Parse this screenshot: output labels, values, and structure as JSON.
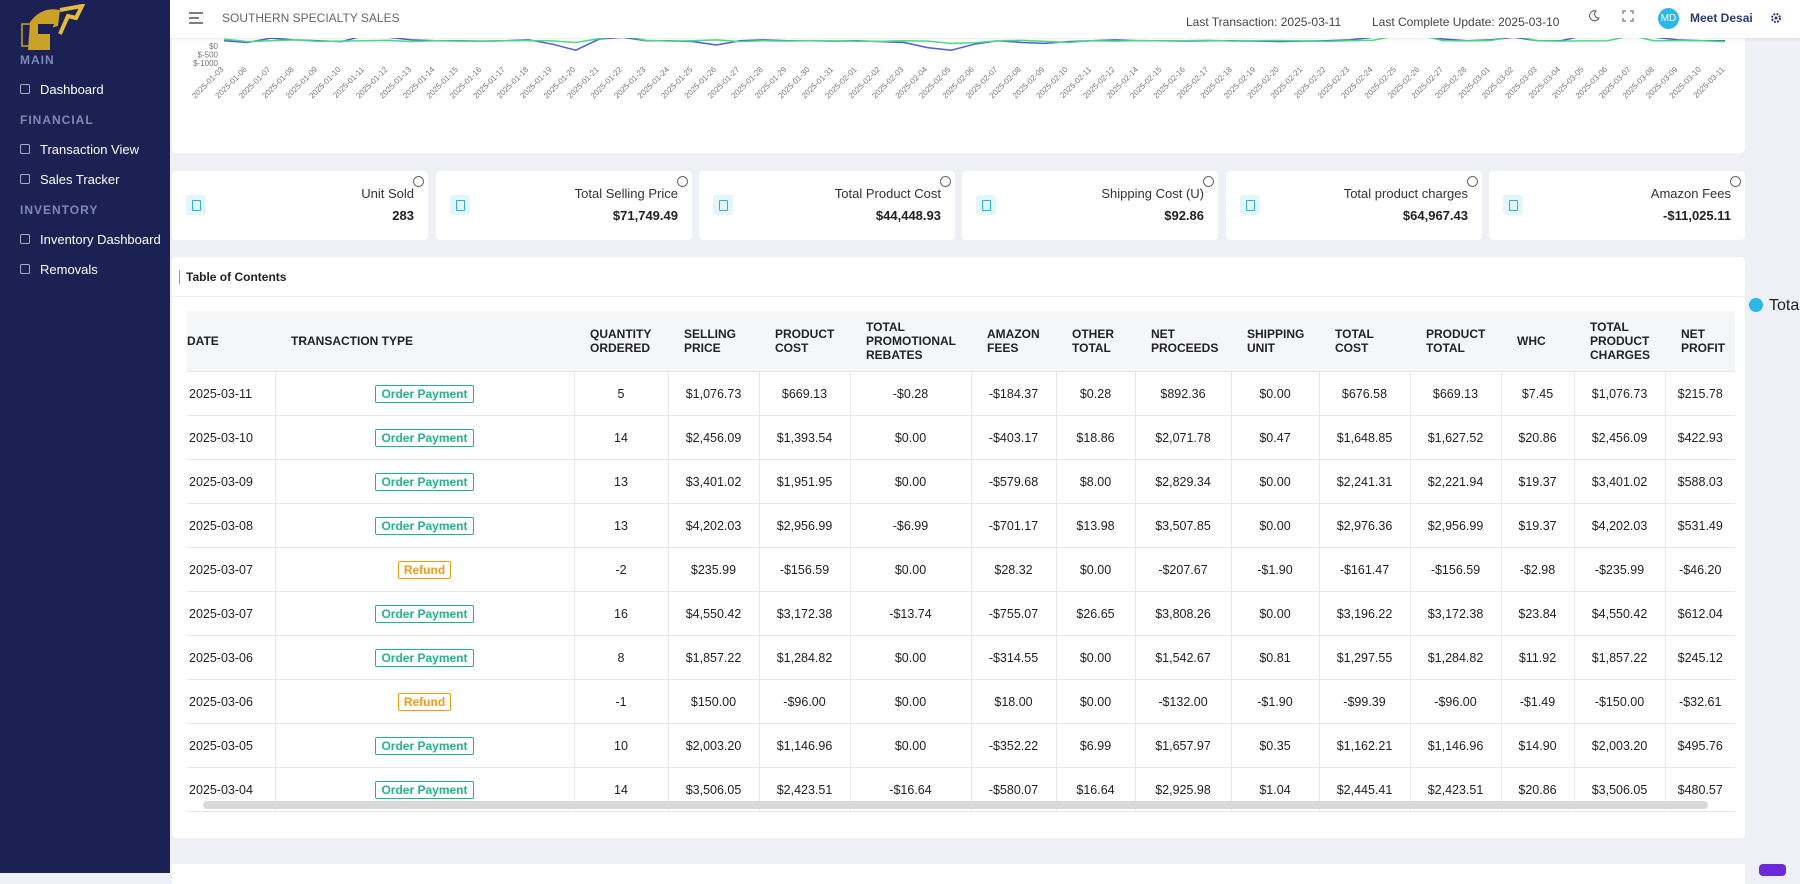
{
  "sidebar": {
    "sections": [
      {
        "heading": "MAIN",
        "items": [
          "Dashboard"
        ]
      },
      {
        "heading": "FINANCIAL",
        "items": [
          "Transaction View",
          "Sales Tracker"
        ]
      },
      {
        "heading": "INVENTORY",
        "items": [
          "Inventory Dashboard",
          "Removals"
        ]
      }
    ]
  },
  "header": {
    "title": "SOUTHERN SPECIALTY SALES",
    "last_transaction": "Last Transaction: 2025-03-11",
    "last_update": "Last Complete Update: 2025-03-10",
    "avatar": "MD",
    "user": "Meet Desai"
  },
  "chart_data": {
    "type": "line",
    "x": [
      "2025-01-03",
      "2025-01-06",
      "2025-01-07",
      "2025-01-08",
      "2025-01-09",
      "2025-01-10",
      "2025-01-11",
      "2025-01-12",
      "2025-01-13",
      "2025-01-14",
      "2025-01-15",
      "2025-01-16",
      "2025-01-17",
      "2025-01-18",
      "2025-01-19",
      "2025-01-20",
      "2025-01-21",
      "2025-01-22",
      "2025-01-23",
      "2025-01-24",
      "2025-01-25",
      "2025-01-26",
      "2025-01-27",
      "2025-01-28",
      "2025-01-29",
      "2025-01-30",
      "2025-01-31",
      "2025-02-01",
      "2025-02-02",
      "2025-02-03",
      "2025-02-04",
      "2025-02-05",
      "2025-02-06",
      "2025-02-07",
      "2025-02-08",
      "2025-02-09",
      "2025-02-10",
      "2025-02-11",
      "2025-02-12",
      "2025-02-14",
      "2025-02-15",
      "2025-02-16",
      "2025-02-17",
      "2025-02-18",
      "2025-02-19",
      "2025-02-20",
      "2025-02-21",
      "2025-02-22",
      "2025-02-23",
      "2025-02-24",
      "2025-02-25",
      "2025-02-26",
      "2025-02-27",
      "2025-02-28",
      "2025-03-01",
      "2025-03-02",
      "2025-03-03",
      "2025-03-04",
      "2025-03-05",
      "2025-03-06",
      "2025-03-07",
      "2025-03-08",
      "2025-03-09",
      "2025-03-10",
      "2025-03-11"
    ],
    "series": [
      {
        "color": "#4a5fd8",
        "values": [
          300,
          200,
          450,
          350,
          300,
          250,
          600,
          500,
          350,
          300,
          300,
          280,
          300,
          350,
          100,
          -250,
          400,
          500,
          300,
          300,
          250,
          50,
          300,
          350,
          300,
          300,
          280,
          300,
          250,
          200,
          -100,
          -250,
          100,
          300,
          200,
          150,
          250,
          300,
          350,
          300,
          300,
          280,
          300,
          300,
          280,
          250,
          280,
          300,
          350,
          500,
          600,
          550,
          400,
          300,
          350,
          500,
          300,
          300,
          600,
          500,
          600,
          500,
          350,
          300,
          300
        ]
      },
      {
        "color": "#4ade80",
        "values": [
          400,
          250,
          300,
          350,
          260,
          280,
          300,
          320,
          250,
          300,
          280,
          260,
          300,
          310,
          290,
          200,
          420,
          600,
          320,
          280,
          300,
          350,
          250,
          300,
          280,
          310,
          290,
          270,
          260,
          300,
          280,
          150,
          180,
          300,
          320,
          260,
          200,
          300,
          280,
          310,
          290,
          300,
          320,
          280,
          300,
          310,
          290,
          260,
          300,
          330,
          600,
          620,
          300,
          290,
          310,
          600,
          300,
          280,
          290,
          300,
          600,
          290,
          310,
          300,
          250
        ]
      }
    ],
    "ylim": [
      -1000,
      1500
    ],
    "yticks": [
      {
        "value": 0,
        "label": "$0"
      },
      {
        "value": -500,
        "label": "$-500"
      },
      {
        "value": -1000,
        "label": "$-1000"
      }
    ]
  },
  "side_legend": {
    "label": "Total",
    "color": "#2bb8e6"
  },
  "cards": [
    {
      "title": "Unit Sold",
      "value": "283"
    },
    {
      "title": "Total Selling Price",
      "value": "$71,749.49"
    },
    {
      "title": "Total Product Cost",
      "value": "$44,448.93"
    },
    {
      "title": "Shipping Cost (U)",
      "value": "$92.86"
    },
    {
      "title": "Total product charges",
      "value": "$64,967.43"
    },
    {
      "title": "Amazon Fees",
      "value": "-$11,025.11"
    }
  ],
  "table": {
    "title": "Table of Contents",
    "type_colors": {
      "Order Payment": "#1fb58a",
      "Refund": "#f29a0e"
    },
    "columns": [
      "DATE",
      "TRANSACTION TYPE",
      "QUANTITY ORDERED",
      "SELLING PRICE",
      "PRODUCT COST",
      "TOTAL PROMOTIONAL REBATES",
      "AMAZON FEES",
      "OTHER TOTAL",
      "NET PROCEEDS",
      "SHIPPING UNIT",
      "TOTAL COST",
      "PRODUCT TOTAL",
      "WHC",
      "TOTAL PRODUCT CHARGES",
      "NET PROFIT"
    ],
    "rows": [
      [
        "2025-03-11",
        "Order Payment",
        "5",
        "$1,076.73",
        "$669.13",
        "-$0.28",
        "-$184.37",
        "$0.28",
        "$892.36",
        "$0.00",
        "$676.58",
        "$669.13",
        "$7.45",
        "$1,076.73",
        "$215.78"
      ],
      [
        "2025-03-10",
        "Order Payment",
        "14",
        "$2,456.09",
        "$1,393.54",
        "$0.00",
        "-$403.17",
        "$18.86",
        "$2,071.78",
        "$0.47",
        "$1,648.85",
        "$1,627.52",
        "$20.86",
        "$2,456.09",
        "$422.93"
      ],
      [
        "2025-03-09",
        "Order Payment",
        "13",
        "$3,401.02",
        "$1,951.95",
        "$0.00",
        "-$579.68",
        "$8.00",
        "$2,829.34",
        "$0.00",
        "$2,241.31",
        "$2,221.94",
        "$19.37",
        "$3,401.02",
        "$588.03"
      ],
      [
        "2025-03-08",
        "Order Payment",
        "13",
        "$4,202.03",
        "$2,956.99",
        "-$6.99",
        "-$701.17",
        "$13.98",
        "$3,507.85",
        "$0.00",
        "$2,976.36",
        "$2,956.99",
        "$19.37",
        "$4,202.03",
        "$531.49"
      ],
      [
        "2025-03-07",
        "Refund",
        "-2",
        "$235.99",
        "-$156.59",
        "$0.00",
        "$28.32",
        "$0.00",
        "-$207.67",
        "-$1.90",
        "-$161.47",
        "-$156.59",
        "-$2.98",
        "-$235.99",
        "-$46.20"
      ],
      [
        "2025-03-07",
        "Order Payment",
        "16",
        "$4,550.42",
        "$3,172.38",
        "-$13.74",
        "-$755.07",
        "$26.65",
        "$3,808.26",
        "$0.00",
        "$3,196.22",
        "$3,172.38",
        "$23.84",
        "$4,550.42",
        "$612.04"
      ],
      [
        "2025-03-06",
        "Order Payment",
        "8",
        "$1,857.22",
        "$1,284.82",
        "$0.00",
        "-$314.55",
        "$0.00",
        "$1,542.67",
        "$0.81",
        "$1,297.55",
        "$1,284.82",
        "$11.92",
        "$1,857.22",
        "$245.12"
      ],
      [
        "2025-03-06",
        "Refund",
        "-1",
        "$150.00",
        "-$96.00",
        "$0.00",
        "$18.00",
        "$0.00",
        "-$132.00",
        "-$1.90",
        "-$99.39",
        "-$96.00",
        "-$1.49",
        "-$150.00",
        "-$32.61"
      ],
      [
        "2025-03-05",
        "Order Payment",
        "10",
        "$2,003.20",
        "$1,146.96",
        "$0.00",
        "-$352.22",
        "$6.99",
        "$1,657.97",
        "$0.35",
        "$1,162.21",
        "$1,146.96",
        "$14.90",
        "$2,003.20",
        "$495.76"
      ],
      [
        "2025-03-04",
        "Order Payment",
        "14",
        "$3,506.05",
        "$2,423.51",
        "-$16.64",
        "-$580.07",
        "$16.64",
        "$2,925.98",
        "$1.04",
        "$2,445.41",
        "$2,423.51",
        "$20.86",
        "$3,506.05",
        "$480.57"
      ]
    ]
  }
}
